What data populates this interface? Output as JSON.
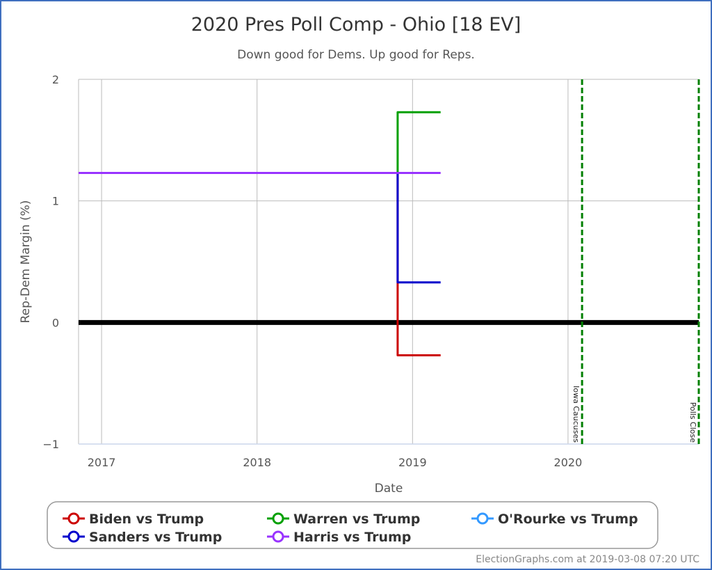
{
  "chart_data": {
    "type": "line",
    "title": "2020 Pres Poll Comp - Ohio [18 EV]",
    "subtitle": "Down good for Dems. Up good for Reps.",
    "xlabel": "Date",
    "ylabel": "Rep-Dem Margin (%)",
    "xlim": [
      "2016-11-08",
      "2020-11-03"
    ],
    "ylim": [
      -1,
      2
    ],
    "x_ticks": [
      "2017",
      "2018",
      "2019",
      "2020"
    ],
    "y_ticks": [
      "2",
      "1",
      "0",
      "-1"
    ],
    "grid": true,
    "zero_line": 0,
    "series": [
      {
        "name": "Biden vs Trump",
        "color": "#cc0000",
        "points": [
          [
            "2016-11-08",
            1.23
          ],
          [
            "2018-11-27",
            1.23
          ],
          [
            "2018-11-27",
            0.33
          ],
          [
            "2018-11-27",
            -0.27
          ],
          [
            "2019-03-08",
            -0.27
          ]
        ]
      },
      {
        "name": "Sanders vs Trump",
        "color": "#0000cc",
        "points": [
          [
            "2016-11-08",
            1.23
          ],
          [
            "2018-11-27",
            1.23
          ],
          [
            "2018-11-27",
            0.33
          ],
          [
            "2019-03-08",
            0.33
          ]
        ]
      },
      {
        "name": "Warren vs Trump",
        "color": "#00a000",
        "points": [
          [
            "2016-11-08",
            1.23
          ],
          [
            "2018-11-27",
            1.23
          ],
          [
            "2018-11-27",
            1.73
          ],
          [
            "2019-03-08",
            1.73
          ]
        ]
      },
      {
        "name": "Harris vs Trump",
        "color": "#9933ff",
        "points": [
          [
            "2016-11-08",
            1.23
          ],
          [
            "2019-03-08",
            1.23
          ]
        ]
      },
      {
        "name": "O'Rourke vs Trump",
        "color": "#3399ff",
        "points": []
      }
    ],
    "annotations": [
      {
        "label": "Iowa Caucuses",
        "date": "2020-02-03",
        "color": "#008000"
      },
      {
        "label": "Polls Close",
        "date": "2020-11-03",
        "color": "#008000"
      }
    ],
    "legend": {
      "placement": "bottom",
      "order": [
        "Biden vs Trump",
        "Warren vs Trump",
        "O'Rourke vs Trump",
        "Sanders vs Trump",
        "Harris vs Trump"
      ]
    }
  },
  "credit": "ElectionGraphs.com at 2019-03-08 07:20 UTC"
}
